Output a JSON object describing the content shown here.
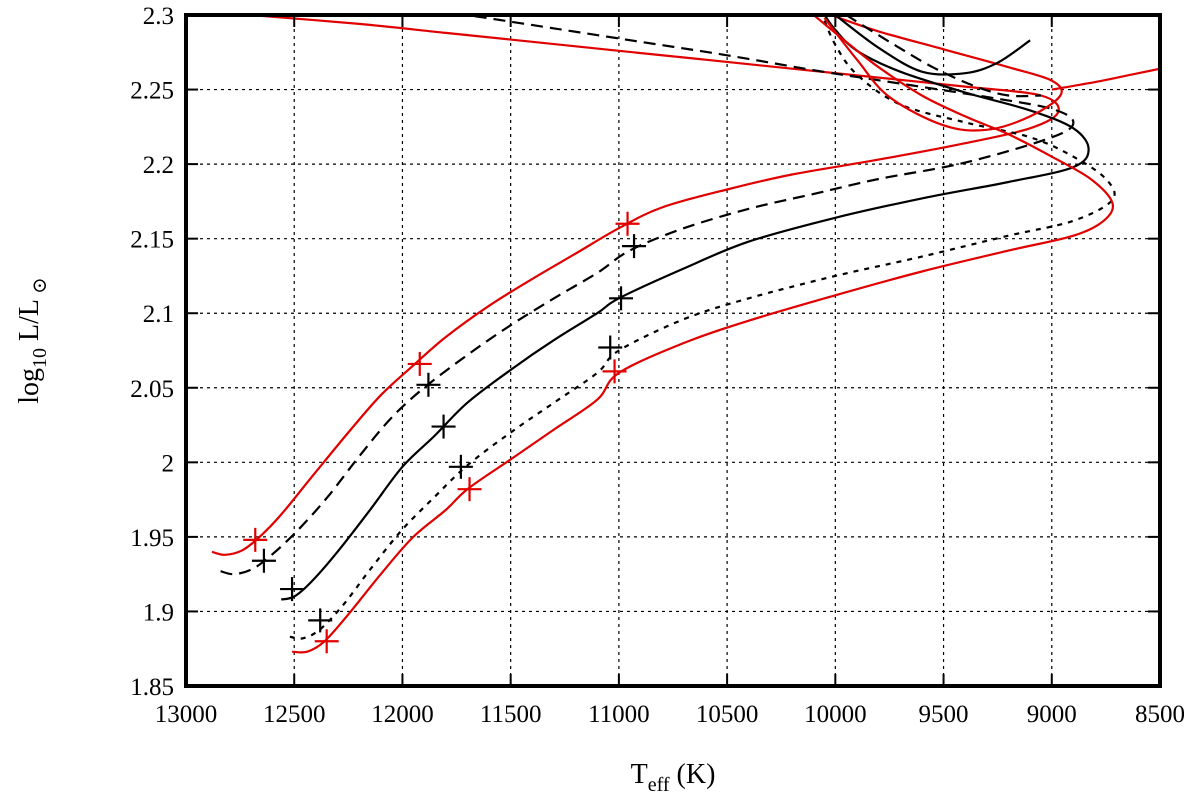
{
  "chart_data": {
    "type": "line",
    "title": "",
    "xlabel": {
      "main": "T",
      "sub": "eff",
      "unit": " (K)"
    },
    "ylabel": {
      "pre": "log",
      "sub": "10",
      "mid": " L/L",
      "post": " ⊙"
    },
    "xlim": [
      13000,
      8500
    ],
    "ylim": [
      1.85,
      2.3
    ],
    "x_ticks": [
      "13000",
      "12500",
      "12000",
      "11500",
      "11000",
      "10500",
      "10000",
      "9500",
      "9000",
      "8500"
    ],
    "y_ticks": [
      "1.85",
      "1.9",
      "1.95",
      "2",
      "2.05",
      "2.1",
      "2.15",
      "2.2",
      "2.25",
      "2.3"
    ],
    "grid": true,
    "legend": "none",
    "colors": {
      "red": "#e00000",
      "black": "#000000"
    },
    "series": [
      {
        "color": "#e00000",
        "style": "solid",
        "points": [
          [
            12880,
            1.94
          ],
          [
            12820,
            1.938
          ],
          [
            12740,
            1.941
          ],
          [
            12660,
            1.95
          ],
          [
            12560,
            1.965
          ],
          [
            12420,
            1.99
          ],
          [
            12250,
            2.02
          ],
          [
            12100,
            2.045
          ],
          [
            11950,
            2.065
          ],
          [
            11800,
            2.084
          ],
          [
            11600,
            2.105
          ],
          [
            11400,
            2.123
          ],
          [
            11200,
            2.14
          ],
          [
            11000,
            2.157
          ],
          [
            10800,
            2.171
          ],
          [
            10500,
            2.183
          ],
          [
            10200,
            2.193
          ],
          [
            9800,
            2.203
          ],
          [
            9400,
            2.214
          ],
          [
            9100,
            2.224
          ],
          [
            8970,
            2.235
          ],
          [
            9050,
            2.246
          ],
          [
            9400,
            2.252
          ],
          [
            9800,
            2.258
          ],
          [
            10200,
            2.264
          ],
          [
            10600,
            2.27
          ],
          [
            11000,
            2.276
          ],
          [
            11400,
            2.282
          ],
          [
            11800,
            2.288
          ],
          [
            12200,
            2.294
          ],
          [
            12700,
            2.3
          ]
        ]
      },
      {
        "color": "#000000",
        "style": "dashed",
        "points": [
          [
            12840,
            1.927
          ],
          [
            12780,
            1.925
          ],
          [
            12700,
            1.928
          ],
          [
            12620,
            1.936
          ],
          [
            12500,
            1.952
          ],
          [
            12350,
            1.976
          ],
          [
            12200,
            2.004
          ],
          [
            12050,
            2.03
          ],
          [
            11900,
            2.05
          ],
          [
            11700,
            2.072
          ],
          [
            11500,
            2.092
          ],
          [
            11300,
            2.11
          ],
          [
            11100,
            2.127
          ],
          [
            10950,
            2.142
          ],
          [
            10700,
            2.157
          ],
          [
            10400,
            2.17
          ],
          [
            10100,
            2.18
          ],
          [
            9800,
            2.19
          ],
          [
            9400,
            2.201
          ],
          [
            9000,
            2.218
          ],
          [
            8900,
            2.228
          ],
          [
            9000,
            2.237
          ],
          [
            9300,
            2.245
          ],
          [
            9700,
            2.254
          ],
          [
            10100,
            2.263
          ],
          [
            10500,
            2.273
          ],
          [
            10900,
            2.282
          ],
          [
            11300,
            2.291
          ],
          [
            11700,
            2.3
          ]
        ]
      },
      {
        "color": "#000000",
        "style": "solid",
        "points": [
          [
            12560,
            1.908
          ],
          [
            12500,
            1.91
          ],
          [
            12420,
            1.92
          ],
          [
            12300,
            1.94
          ],
          [
            12150,
            1.968
          ],
          [
            12000,
            1.997
          ],
          [
            11850,
            2.018
          ],
          [
            11700,
            2.04
          ],
          [
            11500,
            2.062
          ],
          [
            11300,
            2.082
          ],
          [
            11100,
            2.1
          ],
          [
            11000,
            2.11
          ],
          [
            10700,
            2.13
          ],
          [
            10400,
            2.148
          ],
          [
            10000,
            2.164
          ],
          [
            9600,
            2.177
          ],
          [
            9200,
            2.188
          ],
          [
            8900,
            2.198
          ],
          [
            8830,
            2.21
          ],
          [
            8900,
            2.224
          ],
          [
            9100,
            2.236
          ],
          [
            9400,
            2.248
          ],
          [
            9700,
            2.262
          ],
          [
            9900,
            2.276
          ],
          [
            10000,
            2.29
          ],
          [
            10050,
            2.3
          ]
        ]
      },
      {
        "color": "#000000",
        "style": "dotted",
        "points": [
          [
            12520,
            1.883
          ],
          [
            12460,
            1.882
          ],
          [
            12380,
            1.888
          ],
          [
            12270,
            1.905
          ],
          [
            12150,
            1.928
          ],
          [
            12000,
            1.955
          ],
          [
            11850,
            1.977
          ],
          [
            11700,
            1.998
          ],
          [
            11500,
            2.02
          ],
          [
            11300,
            2.04
          ],
          [
            11100,
            2.06
          ],
          [
            11000,
            2.075
          ],
          [
            10700,
            2.096
          ],
          [
            10400,
            2.11
          ],
          [
            10000,
            2.125
          ],
          [
            9600,
            2.138
          ],
          [
            9200,
            2.152
          ],
          [
            8900,
            2.162
          ],
          [
            8720,
            2.176
          ],
          [
            8750,
            2.19
          ],
          [
            8900,
            2.205
          ],
          [
            9100,
            2.218
          ],
          [
            9400,
            2.228
          ],
          [
            9700,
            2.24
          ],
          [
            9900,
            2.26
          ],
          [
            10000,
            2.28
          ],
          [
            10060,
            2.3
          ]
        ]
      },
      {
        "color": "#e00000",
        "style": "solid",
        "points": [
          [
            12510,
            1.873
          ],
          [
            12440,
            1.873
          ],
          [
            12360,
            1.88
          ],
          [
            12250,
            1.898
          ],
          [
            12100,
            1.925
          ],
          [
            11950,
            1.95
          ],
          [
            11800,
            1.968
          ],
          [
            11700,
            1.982
          ],
          [
            11500,
            2.002
          ],
          [
            11300,
            2.022
          ],
          [
            11100,
            2.042
          ],
          [
            11000,
            2.06
          ],
          [
            10700,
            2.08
          ],
          [
            10400,
            2.095
          ],
          [
            10000,
            2.112
          ],
          [
            9600,
            2.128
          ],
          [
            9200,
            2.142
          ],
          [
            8900,
            2.152
          ],
          [
            8760,
            2.162
          ],
          [
            8720,
            2.174
          ],
          [
            8820,
            2.19
          ],
          [
            9000,
            2.205
          ],
          [
            9200,
            2.22
          ],
          [
            9400,
            2.232
          ],
          [
            9600,
            2.246
          ],
          [
            9800,
            2.265
          ],
          [
            9950,
            2.282
          ],
          [
            10100,
            2.3
          ]
        ]
      },
      {
        "color": "#e00000",
        "style": "solid",
        "points": [
          [
            10050,
            2.298
          ],
          [
            9900,
            2.27
          ],
          [
            9750,
            2.245
          ],
          [
            9500,
            2.226
          ],
          [
            9300,
            2.223
          ],
          [
            9100,
            2.232
          ],
          [
            8960,
            2.246
          ],
          [
            9000,
            2.256
          ],
          [
            9200,
            2.265
          ],
          [
            9500,
            2.277
          ],
          [
            9800,
            2.289
          ],
          [
            10020,
            2.3
          ]
        ]
      },
      {
        "color": "#000000",
        "style": "solid",
        "points": [
          [
            10000,
            2.3
          ],
          [
            9800,
            2.278
          ],
          [
            9600,
            2.262
          ],
          [
            9400,
            2.261
          ],
          [
            9250,
            2.268
          ],
          [
            9100,
            2.283
          ]
        ]
      },
      {
        "color": "#000000",
        "style": "dashed",
        "points": [
          [
            9950,
            2.3
          ],
          [
            9750,
            2.282
          ],
          [
            9550,
            2.265
          ],
          [
            9350,
            2.252
          ],
          [
            9200,
            2.246
          ],
          [
            9050,
            2.246
          ]
        ]
      },
      {
        "color": "#e00000",
        "style": "solid",
        "points": [
          [
            9000,
            2.25
          ],
          [
            8800,
            2.255
          ],
          [
            8600,
            2.261
          ],
          [
            8500,
            2.264
          ]
        ]
      }
    ],
    "markers": [
      {
        "color": "#e00000",
        "points": [
          [
            12680,
            1.948
          ],
          [
            11920,
            2.066
          ],
          [
            10960,
            2.16
          ],
          [
            11020,
            2.061
          ],
          [
            11690,
            1.982
          ],
          [
            12350,
            1.88
          ]
        ]
      },
      {
        "color": "#000000",
        "points": [
          [
            12640,
            1.934
          ],
          [
            11880,
            2.052
          ],
          [
            10930,
            2.145
          ],
          [
            10990,
            2.11
          ],
          [
            11810,
            2.024
          ],
          [
            11040,
            2.077
          ],
          [
            11730,
            1.997
          ],
          [
            12510,
            1.915
          ],
          [
            12380,
            1.894
          ]
        ]
      }
    ]
  }
}
